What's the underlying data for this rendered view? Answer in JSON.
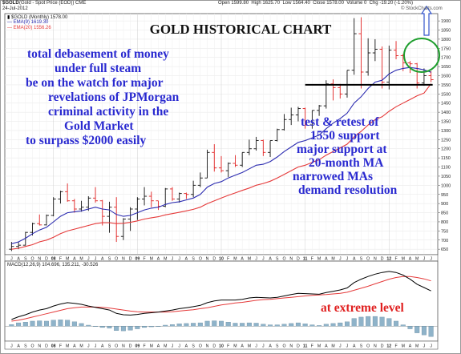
{
  "header": {
    "symbol": "$GOLD",
    "desc": "(Gold - Spot Price (EOD))  CME",
    "date": "24-Jul-2012",
    "open_label": "Open",
    "open": "1599.80",
    "high_label": "High",
    "high": "1625.70",
    "low_label": "Low",
    "low": "1564.40",
    "close_label": "Close",
    "close": "1578.00",
    "vol_label": "Volume",
    "vol": "0",
    "chg_label": "Chg",
    "chg": "-19.20 (-1.20%)",
    "credit": "© StockCharts.com",
    "legend_main": "$GOLD (Monthly) 1578.00",
    "legend_ema9": "EMA(9) 1619.30",
    "legend_ema20": "EMA(20) 1556.26",
    "legend_macd": "MACD(12,26,9) 104.696, 135.211, -30.526"
  },
  "annotations": {
    "left": [
      "total debasement of money",
      "under full steam",
      "be on the watch for major",
      "revelations of JPMorgan",
      "criminal activity in the",
      "Gold Market",
      "to surpass $2000 easily"
    ],
    "right": [
      "test & retest of",
      "1550 support",
      "major support at",
      "20-month MA",
      "narrowed MAs",
      "demand resolution"
    ],
    "macd": "at extreme level"
  },
  "chart_data": {
    "type": "line",
    "title": "GOLD HISTORICAL CHART",
    "subtitle": "",
    "price_ticks": [
      650,
      700,
      750,
      800,
      850,
      900,
      950,
      1000,
      1050,
      1100,
      1150,
      1200,
      1250,
      1300,
      1350,
      1400,
      1450,
      1500,
      1550,
      1600,
      1650,
      1700,
      1750,
      1800,
      1850,
      1900
    ],
    "price_ylim": [
      620,
      1940
    ],
    "x_labels": [
      "J",
      "A",
      "S",
      "O",
      "N",
      "D",
      "08",
      "F",
      "M",
      "A",
      "M",
      "J",
      "J",
      "A",
      "S",
      "O",
      "N",
      "D",
      "09",
      "F",
      "M",
      "A",
      "M",
      "J",
      "J",
      "A",
      "S",
      "O",
      "N",
      "D",
      "10",
      "F",
      "M",
      "A",
      "M",
      "J",
      "J",
      "A",
      "S",
      "O",
      "N",
      "D",
      "11",
      "F",
      "M",
      "A",
      "M",
      "J",
      "J",
      "A",
      "S",
      "O",
      "N",
      "D",
      "12",
      "F",
      "M",
      "A",
      "M",
      "J",
      "J"
    ],
    "candles": [
      {
        "o": 650,
        "h": 690,
        "l": 640,
        "c": 665
      },
      {
        "o": 665,
        "h": 690,
        "l": 650,
        "c": 672
      },
      {
        "o": 672,
        "h": 745,
        "l": 670,
        "c": 742
      },
      {
        "o": 742,
        "h": 795,
        "l": 725,
        "c": 790
      },
      {
        "o": 790,
        "h": 840,
        "l": 780,
        "c": 783
      },
      {
        "o": 783,
        "h": 840,
        "l": 780,
        "c": 835
      },
      {
        "o": 835,
        "h": 935,
        "l": 830,
        "c": 925
      },
      {
        "o": 925,
        "h": 970,
        "l": 900,
        "c": 965
      },
      {
        "o": 965,
        "h": 1010,
        "l": 910,
        "c": 915
      },
      {
        "o": 915,
        "h": 925,
        "l": 850,
        "c": 870
      },
      {
        "o": 870,
        "h": 915,
        "l": 855,
        "c": 880
      },
      {
        "o": 880,
        "h": 940,
        "l": 860,
        "c": 930
      },
      {
        "o": 930,
        "h": 990,
        "l": 905,
        "c": 915
      },
      {
        "o": 915,
        "h": 920,
        "l": 780,
        "c": 830
      },
      {
        "o": 830,
        "h": 910,
        "l": 740,
        "c": 880
      },
      {
        "o": 880,
        "h": 935,
        "l": 690,
        "c": 720
      },
      {
        "o": 720,
        "h": 820,
        "l": 700,
        "c": 815
      },
      {
        "o": 815,
        "h": 880,
        "l": 750,
        "c": 870
      },
      {
        "o": 870,
        "h": 935,
        "l": 810,
        "c": 925
      },
      {
        "o": 925,
        "h": 990,
        "l": 890,
        "c": 940
      },
      {
        "o": 940,
        "h": 965,
        "l": 880,
        "c": 915
      },
      {
        "o": 915,
        "h": 915,
        "l": 865,
        "c": 885
      },
      {
        "o": 885,
        "h": 985,
        "l": 880,
        "c": 980
      },
      {
        "o": 980,
        "h": 990,
        "l": 915,
        "c": 925
      },
      {
        "o": 925,
        "h": 960,
        "l": 905,
        "c": 955
      },
      {
        "o": 955,
        "h": 960,
        "l": 925,
        "c": 950
      },
      {
        "o": 950,
        "h": 1025,
        "l": 935,
        "c": 1000
      },
      {
        "o": 1000,
        "h": 1070,
        "l": 990,
        "c": 1040
      },
      {
        "o": 1040,
        "h": 1195,
        "l": 1040,
        "c": 1180
      },
      {
        "o": 1180,
        "h": 1225,
        "l": 1075,
        "c": 1095
      },
      {
        "o": 1095,
        "h": 1160,
        "l": 1070,
        "c": 1080
      },
      {
        "o": 1080,
        "h": 1125,
        "l": 1045,
        "c": 1120
      },
      {
        "o": 1120,
        "h": 1165,
        "l": 1100,
        "c": 1110
      },
      {
        "o": 1110,
        "h": 1180,
        "l": 1100,
        "c": 1180
      },
      {
        "o": 1180,
        "h": 1250,
        "l": 1165,
        "c": 1200
      },
      {
        "o": 1200,
        "h": 1265,
        "l": 1190,
        "c": 1245
      },
      {
        "o": 1245,
        "h": 1250,
        "l": 1160,
        "c": 1180
      },
      {
        "o": 1180,
        "h": 1245,
        "l": 1155,
        "c": 1245
      },
      {
        "o": 1245,
        "h": 1310,
        "l": 1240,
        "c": 1305
      },
      {
        "o": 1305,
        "h": 1390,
        "l": 1300,
        "c": 1360
      },
      {
        "o": 1360,
        "h": 1425,
        "l": 1330,
        "c": 1385
      },
      {
        "o": 1385,
        "h": 1430,
        "l": 1350,
        "c": 1420
      },
      {
        "o": 1420,
        "h": 1425,
        "l": 1310,
        "c": 1330
      },
      {
        "o": 1330,
        "h": 1410,
        "l": 1310,
        "c": 1410
      },
      {
        "o": 1410,
        "h": 1440,
        "l": 1380,
        "c": 1435
      },
      {
        "o": 1435,
        "h": 1575,
        "l": 1420,
        "c": 1555
      },
      {
        "o": 1555,
        "h": 1580,
        "l": 1465,
        "c": 1535
      },
      {
        "o": 1535,
        "h": 1555,
        "l": 1475,
        "c": 1500
      },
      {
        "o": 1500,
        "h": 1630,
        "l": 1480,
        "c": 1630
      },
      {
        "o": 1630,
        "h": 1915,
        "l": 1605,
        "c": 1830
      },
      {
        "o": 1830,
        "h": 1920,
        "l": 1530,
        "c": 1620
      },
      {
        "o": 1620,
        "h": 1805,
        "l": 1600,
        "c": 1725
      },
      {
        "o": 1725,
        "h": 1800,
        "l": 1680,
        "c": 1745
      },
      {
        "o": 1745,
        "h": 1760,
        "l": 1530,
        "c": 1565
      },
      {
        "o": 1565,
        "h": 1765,
        "l": 1525,
        "c": 1740
      },
      {
        "o": 1740,
        "h": 1790,
        "l": 1690,
        "c": 1710
      },
      {
        "o": 1710,
        "h": 1720,
        "l": 1625,
        "c": 1670
      },
      {
        "o": 1670,
        "h": 1680,
        "l": 1615,
        "c": 1665
      },
      {
        "o": 1665,
        "h": 1670,
        "l": 1530,
        "c": 1560
      },
      {
        "o": 1560,
        "h": 1640,
        "l": 1545,
        "c": 1600
      },
      {
        "o": 1600,
        "h": 1625,
        "l": 1565,
        "c": 1578
      }
    ],
    "ema9": [
      680,
      690,
      710,
      735,
      755,
      770,
      800,
      830,
      850,
      855,
      860,
      870,
      880,
      870,
      865,
      840,
      830,
      835,
      850,
      865,
      875,
      880,
      895,
      905,
      910,
      920,
      930,
      950,
      990,
      1010,
      1020,
      1040,
      1055,
      1070,
      1090,
      1110,
      1115,
      1130,
      1155,
      1185,
      1210,
      1235,
      1245,
      1260,
      1275,
      1310,
      1340,
      1365,
      1395,
      1450,
      1485,
      1530,
      1565,
      1575,
      1610,
      1630,
      1640,
      1645,
      1640,
      1632,
      1619
    ],
    "ema20": [
      650,
      655,
      665,
      675,
      690,
      700,
      715,
      735,
      750,
      760,
      770,
      780,
      790,
      795,
      795,
      790,
      792,
      797,
      805,
      815,
      822,
      828,
      838,
      845,
      852,
      860,
      868,
      880,
      900,
      915,
      930,
      945,
      958,
      972,
      985,
      1000,
      1010,
      1022,
      1040,
      1060,
      1080,
      1100,
      1110,
      1125,
      1140,
      1165,
      1185,
      1205,
      1225,
      1265,
      1295,
      1330,
      1360,
      1375,
      1405,
      1430,
      1450,
      1470,
      1490,
      1505,
      1556
    ],
    "support_level": 1550,
    "macd": {
      "label": "MACD(12,26,9)",
      "macd_line": [
        20,
        28,
        34,
        42,
        48,
        52,
        60,
        66,
        70,
        68,
        65,
        60,
        56,
        52,
        48,
        38,
        34,
        33,
        35,
        38,
        40,
        42,
        45,
        48,
        52,
        55,
        58,
        62,
        70,
        75,
        78,
        78,
        78,
        80,
        84,
        86,
        85,
        84,
        86,
        90,
        94,
        98,
        97,
        96,
        95,
        100,
        104,
        108,
        114,
        130,
        140,
        148,
        155,
        160,
        163,
        160,
        152,
        140,
        125,
        115,
        105
      ],
      "signal_line": [
        15,
        18,
        22,
        27,
        32,
        37,
        42,
        47,
        52,
        55,
        57,
        57,
        57,
        56,
        54,
        51,
        48,
        45,
        43,
        42,
        42,
        42,
        42,
        43,
        45,
        47,
        49,
        52,
        55,
        59,
        63,
        66,
        69,
        71,
        74,
        77,
        79,
        80,
        82,
        84,
        86,
        88,
        90,
        92,
        93,
        94,
        96,
        98,
        101,
        107,
        113,
        119,
        126,
        133,
        140,
        145,
        148,
        148,
        145,
        141,
        135
      ],
      "histogram": [
        5,
        10,
        12,
        15,
        16,
        15,
        18,
        19,
        18,
        13,
        8,
        3,
        -1,
        -4,
        -6,
        -13,
        -14,
        -12,
        -8,
        -4,
        -2,
        0,
        3,
        5,
        7,
        8,
        9,
        10,
        15,
        16,
        15,
        12,
        9,
        9,
        10,
        9,
        6,
        4,
        4,
        6,
        8,
        10,
        7,
        4,
        2,
        6,
        8,
        10,
        13,
        23,
        27,
        29,
        29,
        27,
        23,
        15,
        4,
        -8,
        -20,
        -26,
        -31
      ],
      "ylim": [
        -40,
        170
      ]
    }
  }
}
